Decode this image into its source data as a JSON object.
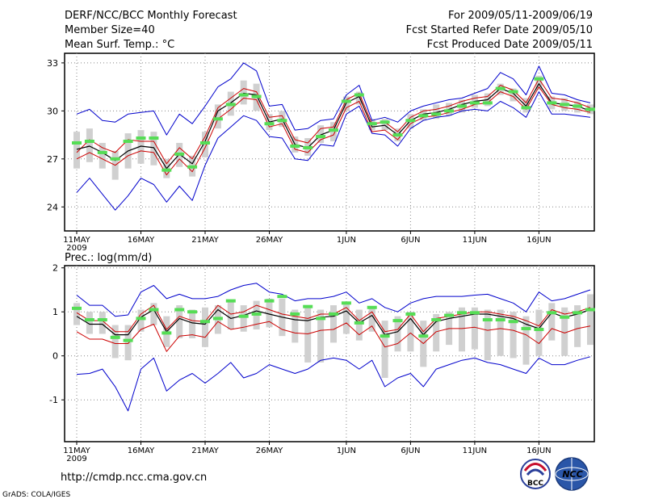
{
  "header": {
    "title": "DERF/NCC/BCC Monthly Forecast",
    "member_size": "Member Size=40",
    "variable": "Mean Surf. Temp.: °C",
    "period": "For 2009/05/11-2009/06/19",
    "started": "Fcst Started Refer Date 2009/05/10",
    "produced": "Fcst Produced Date 2009/05/11"
  },
  "footer": {
    "url": "http://cmdp.ncc.cma.gov.cn",
    "credit": "GrADS: COLA/IGES",
    "logo_bcc": "BCC",
    "logo_ncc": "NCC"
  },
  "colors": {
    "envelope": "#0000cc",
    "mean": "#000000",
    "spread": "#cc0000",
    "box": "#d0d0d0",
    "median": "#55dd55",
    "grid": "#888888"
  },
  "chart_data": [
    {
      "type": "line",
      "title": "Mean Surf. Temp.: °C",
      "x_tick_labels": [
        "11MAY",
        "16MAY",
        "21MAY",
        "26MAY",
        "1JUN",
        "6JUN",
        "11JUN",
        "16JUN"
      ],
      "x_tick_index": [
        0,
        5,
        10,
        15,
        21,
        26,
        31,
        36
      ],
      "year_label": "2009",
      "ylim": [
        22.5,
        33.6
      ],
      "y_ticks": [
        24,
        27,
        30,
        33
      ],
      "series": [
        {
          "name": "max",
          "values": [
            29.8,
            30.1,
            29.4,
            29.3,
            29.8,
            29.9,
            30.0,
            28.5,
            29.8,
            29.2,
            30.3,
            31.5,
            32.0,
            33.0,
            32.5,
            30.3,
            30.4,
            28.8,
            28.9,
            29.4,
            29.5,
            31.0,
            31.6,
            29.4,
            29.6,
            29.3,
            30.0,
            30.3,
            30.5,
            30.7,
            30.8,
            31.1,
            31.4,
            32.4,
            32.0,
            31.0,
            32.8,
            31.1,
            31.0,
            30.7,
            30.5
          ]
        },
        {
          "name": "upper",
          "values": [
            27.4,
            28.2,
            27.7,
            27.4,
            28.2,
            28.1,
            28.1,
            26.7,
            27.7,
            27.0,
            28.4,
            30.2,
            30.8,
            31.4,
            31.2,
            29.6,
            29.7,
            28.2,
            28.0,
            28.9,
            29.0,
            30.7,
            31.1,
            29.2,
            29.3,
            28.7,
            29.6,
            30.0,
            30.1,
            30.3,
            30.6,
            30.8,
            30.9,
            31.6,
            31.3,
            30.5,
            32.0,
            30.8,
            30.7,
            30.5,
            30.2
          ]
        },
        {
          "name": "mean",
          "values": [
            27.6,
            27.8,
            27.4,
            26.9,
            27.5,
            27.8,
            27.7,
            26.4,
            27.3,
            26.7,
            28.1,
            30.0,
            30.5,
            31.1,
            31.0,
            29.3,
            29.5,
            27.9,
            27.7,
            28.5,
            28.8,
            30.5,
            30.9,
            29.0,
            29.1,
            28.5,
            29.4,
            29.8,
            29.9,
            30.1,
            30.4,
            30.6,
            30.7,
            31.4,
            31.1,
            30.3,
            31.7,
            30.5,
            30.4,
            30.3,
            30.0
          ]
        },
        {
          "name": "lower",
          "values": [
            27.0,
            27.4,
            27.0,
            26.6,
            27.2,
            27.5,
            27.4,
            26.0,
            27.0,
            26.2,
            27.7,
            29.5,
            30.1,
            30.8,
            30.7,
            29.0,
            29.2,
            27.6,
            27.4,
            28.2,
            28.5,
            30.2,
            30.6,
            28.7,
            28.8,
            28.2,
            29.2,
            29.6,
            29.7,
            29.9,
            30.1,
            30.4,
            30.5,
            31.2,
            30.9,
            30.1,
            31.5,
            30.4,
            30.2,
            30.1,
            29.9
          ]
        },
        {
          "name": "min",
          "values": [
            24.9,
            25.8,
            24.8,
            23.8,
            24.7,
            25.8,
            25.4,
            24.3,
            25.3,
            24.4,
            26.6,
            28.3,
            29.0,
            29.7,
            29.4,
            28.4,
            28.3,
            27.0,
            26.9,
            27.9,
            27.8,
            29.8,
            30.3,
            28.6,
            28.5,
            27.8,
            28.9,
            29.4,
            29.6,
            29.7,
            30.0,
            30.1,
            30.0,
            30.6,
            30.2,
            29.6,
            31.2,
            29.8,
            29.8,
            29.7,
            29.6
          ]
        },
        {
          "name": "median",
          "values": [
            28.0,
            28.1,
            27.4,
            27.0,
            28.1,
            28.3,
            28.3,
            26.3,
            27.3,
            26.5,
            28.0,
            29.5,
            30.4,
            31.0,
            30.9,
            29.2,
            29.4,
            27.8,
            27.7,
            28.4,
            28.8,
            30.6,
            31.0,
            29.2,
            29.3,
            28.5,
            29.4,
            29.7,
            29.8,
            30.0,
            30.3,
            30.5,
            30.5,
            31.4,
            31.2,
            30.2,
            32.0,
            30.5,
            30.4,
            30.3,
            30.1
          ]
        },
        {
          "name": "box_high",
          "values": [
            28.7,
            28.9,
            28.0,
            27.5,
            28.6,
            28.8,
            28.7,
            27.0,
            28.0,
            27.2,
            28.7,
            30.4,
            31.2,
            31.9,
            31.7,
            29.8,
            30.0,
            28.4,
            28.3,
            29.1,
            29.3,
            30.9,
            31.2,
            29.5,
            29.5,
            28.9,
            29.8,
            30.1,
            30.4,
            30.5,
            30.7,
            31.0,
            31.1,
            31.7,
            31.4,
            30.8,
            32.2,
            30.9,
            30.8,
            30.6,
            30.4
          ]
        },
        {
          "name": "box_low",
          "values": [
            26.4,
            26.8,
            26.4,
            25.7,
            26.4,
            26.7,
            26.6,
            25.8,
            26.5,
            25.9,
            27.1,
            28.9,
            29.7,
            30.4,
            30.0,
            28.8,
            29.0,
            27.4,
            27.2,
            28.0,
            28.1,
            30.0,
            30.4,
            28.8,
            28.8,
            28.1,
            28.9,
            29.4,
            29.5,
            29.7,
            29.9,
            30.2,
            30.3,
            31.0,
            30.6,
            29.9,
            31.3,
            30.1,
            30.0,
            29.9,
            29.8
          ]
        }
      ]
    },
    {
      "type": "line",
      "title": "Prec.: log(mm/d)",
      "x_tick_labels": [
        "11MAY",
        "16MAY",
        "21MAY",
        "26MAY",
        "1JUN",
        "6JUN",
        "11JUN",
        "16JUN"
      ],
      "x_tick_index": [
        0,
        5,
        10,
        15,
        21,
        26,
        31,
        36
      ],
      "year_label": "2009",
      "ylim": [
        -1.95,
        2.05
      ],
      "y_ticks": [
        -1,
        0,
        1,
        2
      ],
      "series": [
        {
          "name": "max",
          "values": [
            1.38,
            1.15,
            1.15,
            0.9,
            0.93,
            1.45,
            1.6,
            1.3,
            1.4,
            1.3,
            1.3,
            1.35,
            1.5,
            1.6,
            1.65,
            1.45,
            1.4,
            1.25,
            1.3,
            1.3,
            1.35,
            1.45,
            1.2,
            1.3,
            1.1,
            1.0,
            1.2,
            1.3,
            1.35,
            1.35,
            1.35,
            1.38,
            1.4,
            1.3,
            1.2,
            1.0,
            1.45,
            1.25,
            1.3,
            1.4,
            1.5
          ]
        },
        {
          "name": "upper",
          "values": [
            0.98,
            0.8,
            0.8,
            0.55,
            0.55,
            0.95,
            1.15,
            0.6,
            0.9,
            0.8,
            0.78,
            1.15,
            0.95,
            1.0,
            1.15,
            1.05,
            0.95,
            0.9,
            0.85,
            0.95,
            0.95,
            1.1,
            0.8,
            1.0,
            0.55,
            0.6,
            0.95,
            0.55,
            0.85,
            0.9,
            0.95,
            1.0,
            1.0,
            0.95,
            0.9,
            0.8,
            0.68,
            1.05,
            0.95,
            1.0,
            1.1
          ]
        },
        {
          "name": "mean",
          "values": [
            0.9,
            0.72,
            0.72,
            0.48,
            0.48,
            0.88,
            1.05,
            0.55,
            0.85,
            0.75,
            0.72,
            1.05,
            0.85,
            0.92,
            1.02,
            0.95,
            0.88,
            0.82,
            0.8,
            0.88,
            0.9,
            1.02,
            0.75,
            0.92,
            0.48,
            0.55,
            0.85,
            0.48,
            0.78,
            0.85,
            0.9,
            0.95,
            0.95,
            0.9,
            0.85,
            0.72,
            0.62,
            0.98,
            0.88,
            0.95,
            1.05
          ]
        },
        {
          "name": "lower",
          "values": [
            0.55,
            0.38,
            0.38,
            0.28,
            0.28,
            0.6,
            0.72,
            0.1,
            0.45,
            0.48,
            0.42,
            0.78,
            0.6,
            0.65,
            0.72,
            0.78,
            0.6,
            0.52,
            0.5,
            0.58,
            0.6,
            0.75,
            0.48,
            0.68,
            0.2,
            0.28,
            0.52,
            0.28,
            0.55,
            0.62,
            0.62,
            0.65,
            0.58,
            0.62,
            0.58,
            0.48,
            0.28,
            0.62,
            0.52,
            0.62,
            0.68
          ]
        },
        {
          "name": "min",
          "values": [
            -0.42,
            -0.4,
            -0.3,
            -0.7,
            -1.25,
            -0.3,
            -0.05,
            -0.8,
            -0.55,
            -0.4,
            -0.62,
            -0.4,
            -0.15,
            -0.5,
            -0.4,
            -0.2,
            -0.3,
            -0.4,
            -0.3,
            -0.1,
            -0.05,
            -0.1,
            -0.3,
            -0.1,
            -0.7,
            -0.5,
            -0.4,
            -0.7,
            -0.3,
            -0.2,
            -0.1,
            -0.05,
            -0.15,
            -0.2,
            -0.3,
            -0.4,
            -0.05,
            -0.2,
            -0.2,
            -0.1,
            -0.02
          ]
        },
        {
          "name": "median",
          "values": [
            1.08,
            0.82,
            0.82,
            0.42,
            0.35,
            0.85,
            1.05,
            0.52,
            1.05,
            1.0,
            0.78,
            0.85,
            1.25,
            0.9,
            0.95,
            1.25,
            1.35,
            0.95,
            1.12,
            0.85,
            0.95,
            1.2,
            0.75,
            1.1,
            0.45,
            0.8,
            0.95,
            0.45,
            0.82,
            0.92,
            0.98,
            0.98,
            0.82,
            0.82,
            0.78,
            0.62,
            0.6,
            0.98,
            0.88,
            0.98,
            1.05
          ]
        },
        {
          "name": "box_high",
          "values": [
            1.2,
            1.0,
            1.0,
            0.7,
            0.7,
            1.05,
            1.2,
            0.9,
            1.15,
            1.05,
            1.1,
            1.15,
            1.25,
            1.15,
            1.25,
            1.3,
            1.3,
            1.05,
            1.15,
            1.05,
            1.15,
            1.2,
            1.05,
            1.1,
            0.8,
            0.9,
            1.0,
            0.8,
            0.95,
            1.0,
            1.1,
            1.1,
            1.05,
            1.05,
            1.0,
            0.9,
            1.05,
            1.2,
            1.1,
            1.15,
            1.4
          ]
        },
        {
          "name": "box_low",
          "values": [
            0.7,
            0.5,
            0.5,
            -0.05,
            -0.1,
            0.55,
            0.7,
            0.2,
            0.4,
            0.4,
            0.2,
            0.5,
            0.6,
            0.55,
            0.6,
            0.65,
            0.45,
            0.3,
            -0.15,
            -0.15,
            0.3,
            0.5,
            0.35,
            0.55,
            -0.5,
            0.1,
            0.1,
            -0.25,
            0.1,
            0.25,
            0.1,
            0.15,
            -0.1,
            0.0,
            -0.05,
            -0.2,
            0.0,
            0.35,
            0.0,
            0.2,
            0.25
          ]
        }
      ]
    }
  ]
}
